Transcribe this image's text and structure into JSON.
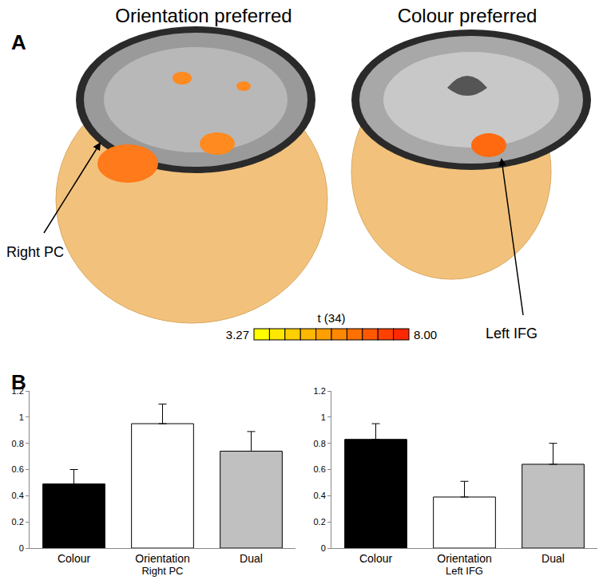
{
  "chart_data": [
    {
      "type": "bar",
      "xlabel": "Right PC",
      "categories": [
        "Colour",
        "Orientation",
        "Dual"
      ],
      "values": [
        0.49,
        0.95,
        0.74
      ],
      "errors": [
        0.11,
        0.15,
        0.15
      ],
      "colors": [
        "#000000",
        "#ffffff",
        "#c0c0c0"
      ],
      "ylim": [
        0,
        1.2
      ],
      "yticks": [
        0,
        0.2,
        0.4,
        0.6,
        0.8,
        1,
        1.2
      ],
      "grid": false
    },
    {
      "type": "bar",
      "xlabel": "Left IFG",
      "categories": [
        "Colour",
        "Orientation",
        "Dual"
      ],
      "values": [
        0.83,
        0.39,
        0.64
      ],
      "errors": [
        0.12,
        0.12,
        0.16
      ],
      "colors": [
        "#000000",
        "#ffffff",
        "#c0c0c0"
      ],
      "ylim": [
        0,
        1.2
      ],
      "yticks": [
        0,
        0.2,
        0.4,
        0.6,
        0.8,
        1,
        1.2
      ],
      "grid": false
    }
  ],
  "panel_labels": [
    "A",
    "B"
  ],
  "panel_a": {
    "images": [
      {
        "title": "Orientation preferred",
        "region": "Right PC"
      },
      {
        "title": "Colour preferred",
        "region": "Left IFG"
      }
    ],
    "colorbar": {
      "title": "t (34)",
      "range": [
        3.27,
        8
      ],
      "ticks": [
        {
          "value": 3.27,
          "label": "3.27"
        },
        {
          "value": 8,
          "label": "8.00"
        }
      ]
    }
  }
}
